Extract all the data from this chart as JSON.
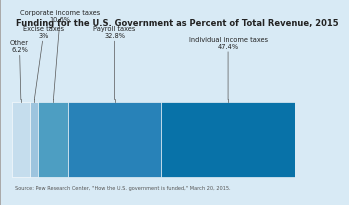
{
  "title": "Funding for the U.S. Government as Percent of Total Revenue, 2015",
  "categories": [
    "Other",
    "Excise taxes",
    "Corporate income taxes",
    "Payroll taxes",
    "Individual income taxes"
  ],
  "values": [
    6.2,
    3.0,
    10.6,
    32.8,
    47.4
  ],
  "colors": [
    "#c5dded",
    "#9dc4de",
    "#4d9ec2",
    "#2882b8",
    "#0872a8"
  ],
  "label_lines": [
    "Other\n6.2%",
    "Excise taxes\n3%",
    "Corporate income taxes\n10.6%",
    "Payroll taxes\n32.8%",
    "Individual income taxes\n47.4%"
  ],
  "source": "Source: Pew Research Center, \"How the U.S. government is funded,\" March 20, 2015.",
  "background_color": "#d8eaf5",
  "title_fontsize": 6.0,
  "label_fontsize": 4.8,
  "source_fontsize": 3.6
}
